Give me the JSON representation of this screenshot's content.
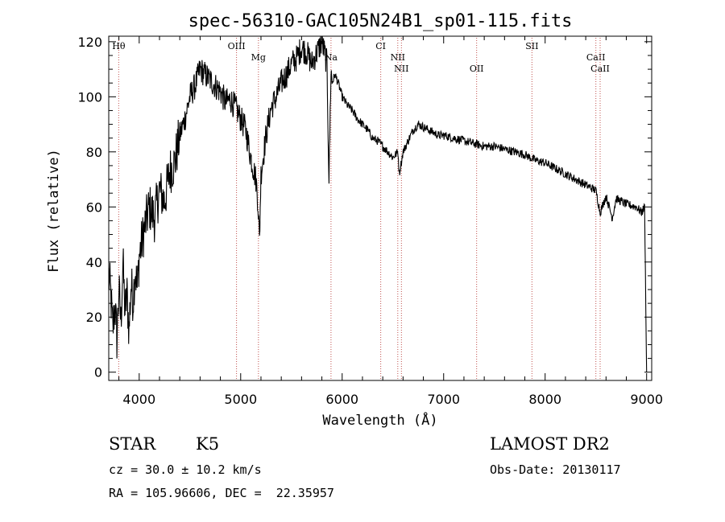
{
  "chart_data": {
    "type": "line",
    "title": "spec-56310-GAC105N24B1_sp01-115.fits",
    "xlabel": "Wavelength (Å)",
    "ylabel": "Flux (relative)",
    "xlim": [
      3700,
      9050
    ],
    "ylim": [
      -3,
      122
    ],
    "x_ticks": [
      4000,
      5000,
      6000,
      7000,
      8000,
      9000
    ],
    "y_ticks": [
      0,
      20,
      40,
      60,
      80,
      100,
      120
    ],
    "x_tick_labels": [
      "4000",
      "5000",
      "6000",
      "7000",
      "8000",
      "9000"
    ],
    "y_tick_labels": [
      "0",
      "20",
      "40",
      "60",
      "80",
      "100",
      "120"
    ],
    "grid": false,
    "line_color": "#000000",
    "marker_line_color": "#c0504d",
    "series": [
      {
        "x": [
          3700,
          3720,
          3740,
          3760,
          3780,
          3800,
          3820,
          3840,
          3860,
          3880,
          3900,
          3920,
          3940,
          3960,
          3980,
          4000,
          4050,
          4100,
          4150,
          4200,
          4250,
          4300,
          4350,
          4400,
          4450,
          4500,
          4550,
          4600,
          4650,
          4700,
          4750,
          4800,
          4850,
          4900,
          4950,
          5000,
          5050,
          5100,
          5150,
          5170,
          5185,
          5200,
          5250,
          5300,
          5350,
          5400,
          5450,
          5500,
          5550,
          5600,
          5650,
          5700,
          5750,
          5800,
          5820,
          5850,
          5870,
          5890,
          5900,
          5930,
          5970,
          6000,
          6050,
          6100,
          6150,
          6200,
          6250,
          6300,
          6350,
          6400,
          6450,
          6500,
          6550,
          6563,
          6600,
          6650,
          6700,
          6750,
          6800,
          6850,
          6900,
          6950,
          7000,
          7100,
          7200,
          7300,
          7400,
          7500,
          7600,
          7700,
          7800,
          7900,
          8000,
          8100,
          8200,
          8300,
          8400,
          8500,
          8542,
          8600,
          8662,
          8700,
          8800,
          8900,
          8950,
          8980,
          9000
        ],
        "y": [
          35,
          28,
          15,
          25,
          12,
          30,
          18,
          40,
          22,
          28,
          15,
          32,
          26,
          38,
          30,
          42,
          52,
          60,
          56,
          66,
          62,
          73,
          76,
          86,
          92,
          100,
          104,
          110,
          108,
          106,
          104,
          102,
          98,
          99,
          96,
          92,
          88,
          78,
          70,
          62,
          48,
          72,
          86,
          96,
          100,
          105,
          108,
          112,
          114,
          118,
          116,
          112,
          116,
          120,
          117,
          112,
          70,
          110,
          105,
          108,
          104,
          100,
          97,
          95,
          92,
          90,
          88,
          85,
          84,
          82,
          80,
          78,
          80,
          72,
          80,
          84,
          88,
          90,
          89,
          88,
          87,
          86,
          86,
          85,
          84,
          83,
          82,
          82,
          81,
          80,
          79,
          77,
          76,
          74,
          72,
          70,
          68,
          66,
          58,
          64,
          56,
          63,
          61,
          60,
          58,
          60,
          0
        ]
      }
    ],
    "line_markers": [
      {
        "label": "Hθ",
        "x": 3798
      },
      {
        "label": "OIII",
        "x": 4959
      },
      {
        "label": "Mg",
        "x": 5175
      },
      {
        "label": "Na",
        "x": 5890
      },
      {
        "label": "CI",
        "x": 6380
      },
      {
        "label": "NII",
        "x": 6548
      },
      {
        "label": "NII",
        "x": 6584
      },
      {
        "label": "OII",
        "x": 7325
      },
      {
        "label": "SII",
        "x": 7870
      },
      {
        "label": "CaII",
        "x": 8500
      },
      {
        "label": "CaII",
        "x": 8542
      }
    ]
  },
  "info": {
    "class": "STAR",
    "subclass": "K5",
    "cz": "cz = 30.0 ± 10.2 km/s",
    "coords": "RA = 105.96606, DEC =  22.35957",
    "survey": "LAMOST DR2",
    "obs_date": "Obs-Date: 20130117"
  }
}
